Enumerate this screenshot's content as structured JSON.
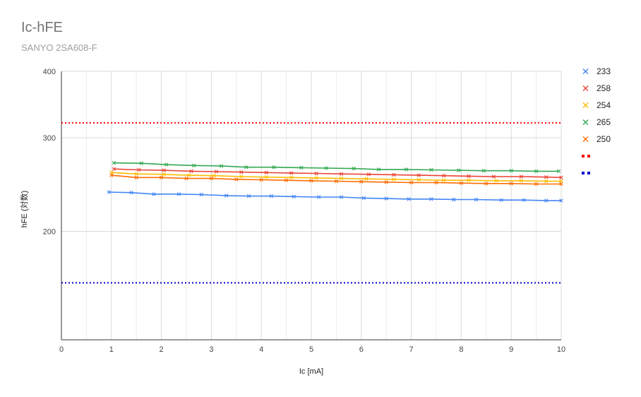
{
  "title": "Ic-hFE",
  "subtitle": "SANYO 2SA608-F",
  "chart_data": {
    "type": "scatter",
    "title": "Ic-hFE",
    "subtitle": "SANYO 2SA608-F",
    "xlabel": "Ic [mA]",
    "ylabel": "hFE (対数)",
    "xlim": [
      0,
      10
    ],
    "ylim": [
      125,
      400
    ],
    "yscale": "log",
    "x_ticks": [
      "0",
      "1",
      "2",
      "3",
      "4",
      "5",
      "6",
      "7",
      "8",
      "9",
      "10"
    ],
    "y_ticks": [
      "200",
      "300",
      "400"
    ],
    "grid": true,
    "legend_position": "right",
    "series": [
      {
        "name": "233",
        "color": "#4285f4",
        "marker": "x",
        "x": [
          0.95,
          1.4,
          1.85,
          2.35,
          2.8,
          3.3,
          3.75,
          4.2,
          4.65,
          5.15,
          5.6,
          6.05,
          6.5,
          6.95,
          7.4,
          7.85,
          8.3,
          8.8,
          9.25,
          9.7,
          10
        ],
        "y": [
          237,
          236.5,
          235,
          235,
          234.5,
          233.5,
          233,
          233,
          232.5,
          232,
          232,
          231,
          230.5,
          230,
          230,
          229.5,
          229.5,
          229,
          229,
          228.5,
          228.5
        ]
      },
      {
        "name": "258",
        "color": "#ea4335",
        "marker": "x",
        "x": [
          1.05,
          1.55,
          2.05,
          2.6,
          3.1,
          3.6,
          4.1,
          4.6,
          5.1,
          5.6,
          6.15,
          6.65,
          7.15,
          7.65,
          8.15,
          8.65,
          9.2,
          9.7,
          10
        ],
        "y": [
          262,
          261,
          260.5,
          259.5,
          259,
          258.5,
          258,
          257.5,
          257,
          256.5,
          256,
          255.5,
          255,
          254.5,
          254,
          253.5,
          253.5,
          253,
          252.5
        ]
      },
      {
        "name": "254",
        "color": "#fbbc04",
        "marker": "x",
        "x": [
          1.0,
          1.5,
          2.05,
          2.55,
          3.05,
          3.6,
          4.1,
          4.6,
          5.1,
          5.6,
          6.1,
          6.65,
          7.15,
          7.65,
          8.15,
          8.7,
          9.2,
          9.7,
          10
        ],
        "y": [
          258,
          256.5,
          256,
          255,
          254.5,
          253.5,
          253,
          252.5,
          252,
          251.5,
          251,
          250.5,
          250,
          249.5,
          249.5,
          249,
          249,
          248.5,
          248.5
        ]
      },
      {
        "name": "265",
        "color": "#34a853",
        "marker": "x",
        "x": [
          1.05,
          1.6,
          2.1,
          2.65,
          3.2,
          3.7,
          4.25,
          4.8,
          5.3,
          5.85,
          6.35,
          6.9,
          7.4,
          7.95,
          8.45,
          9.0,
          9.5,
          9.95
        ],
        "y": [
          269,
          268.5,
          267,
          266,
          265.5,
          264,
          264,
          263.5,
          263,
          262.5,
          261.5,
          261.5,
          261,
          260.5,
          260,
          260,
          259.5,
          259.5
        ]
      },
      {
        "name": "250",
        "color": "#ff6d01",
        "marker": "x",
        "x": [
          1.0,
          1.5,
          2.0,
          2.5,
          3.0,
          3.5,
          4.0,
          4.5,
          5.0,
          5.5,
          6.0,
          6.5,
          7.0,
          7.5,
          8.0,
          8.5,
          9.0,
          9.5,
          10
        ],
        "y": [
          255,
          252.5,
          252.5,
          251.5,
          251.5,
          250.5,
          250,
          249.5,
          249,
          248.5,
          248,
          247.5,
          247,
          247,
          246.5,
          246,
          246,
          245.5,
          245.5
        ]
      },
      {
        "name": "",
        "color": "#ff0000",
        "style": "dotted",
        "x": [
          0,
          10
        ],
        "y": [
          320,
          320
        ]
      },
      {
        "name": "",
        "color": "#0000cc",
        "style": "dotted",
        "x": [
          0,
          10
        ],
        "y": [
          160,
          160
        ]
      }
    ]
  }
}
